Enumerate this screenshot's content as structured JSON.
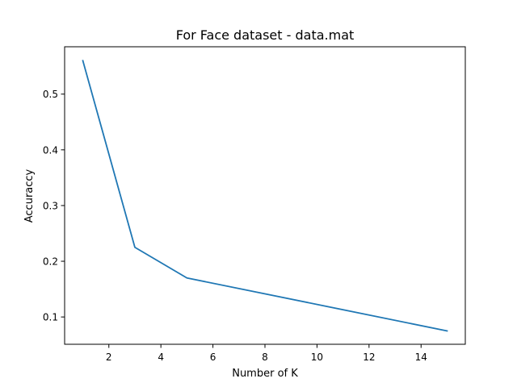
{
  "chart_data": {
    "type": "line",
    "title": "For Face dataset - data.mat",
    "xlabel": "Number of K",
    "ylabel": "Accuraccy",
    "xlim": [
      0.3,
      15.7
    ],
    "ylim": [
      0.051,
      0.585
    ],
    "xticks": [
      2,
      4,
      6,
      8,
      10,
      12,
      14
    ],
    "yticks": [
      0.1,
      0.2,
      0.3,
      0.4,
      0.5
    ],
    "ytick_labels": [
      "0.1",
      "0.2",
      "0.3",
      "0.4",
      "0.5"
    ],
    "grid": false,
    "series": [
      {
        "x": [
          1,
          3,
          5,
          15
        ],
        "values": [
          0.56,
          0.225,
          0.17,
          0.075
        ],
        "color": "#1f77b4"
      }
    ]
  }
}
